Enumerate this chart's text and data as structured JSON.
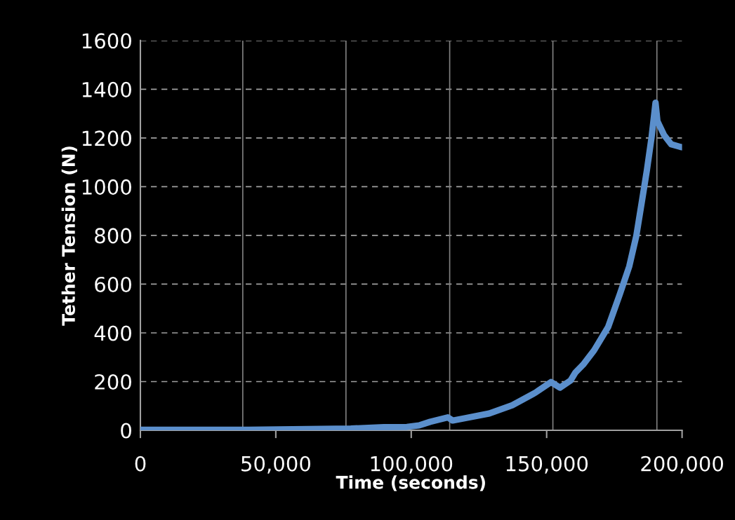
{
  "chart_data": {
    "type": "line",
    "xlabel": "Time (seconds)",
    "ylabel": "Tether Tension (N)",
    "xlim": [
      0,
      200000
    ],
    "ylim": [
      0,
      1600
    ],
    "xticks": [
      {
        "value": 0,
        "label": "0"
      },
      {
        "value": 50000,
        "label": "50,000"
      },
      {
        "value": 100000,
        "label": "100,000"
      },
      {
        "value": 150000,
        "label": "150,000"
      },
      {
        "value": 200000,
        "label": "200,000"
      }
    ],
    "yticks": [
      0,
      200,
      400,
      600,
      800,
      1000,
      1200,
      1400,
      1600
    ],
    "grid": "y",
    "marker": "none",
    "line_style": "solid",
    "ref_lines": [
      {
        "axis": "x",
        "value": 37800,
        "color": "#808080"
      },
      {
        "axis": "x",
        "value": 75900,
        "color": "#808080"
      },
      {
        "axis": "x",
        "value": 114200,
        "color": "#808080"
      },
      {
        "axis": "x",
        "value": 152300,
        "color": "#808080"
      },
      {
        "axis": "x",
        "value": 190700,
        "color": "#808080"
      }
    ],
    "series": [
      {
        "color": "#5b8fcc",
        "x": [
          0,
          40000,
          77700,
          89900,
          98400,
          102900,
          107000,
          113500,
          115300,
          120000,
          128800,
          137300,
          145900,
          151600,
          154900,
          158800,
          160600,
          163500,
          167500,
          172700,
          177000,
          180500,
          183100,
          185200,
          187000,
          188700,
          190200,
          190900,
          193400,
          196000,
          199500,
          200000
        ],
        "values": [
          2,
          2,
          7,
          13,
          14,
          20,
          35,
          53,
          40,
          50,
          69,
          103,
          155,
          198,
          175,
          204,
          237,
          270,
          328,
          424,
          558,
          673,
          798,
          942,
          1067,
          1200,
          1345,
          1269,
          1211,
          1174,
          1163,
          1162
        ]
      }
    ]
  }
}
